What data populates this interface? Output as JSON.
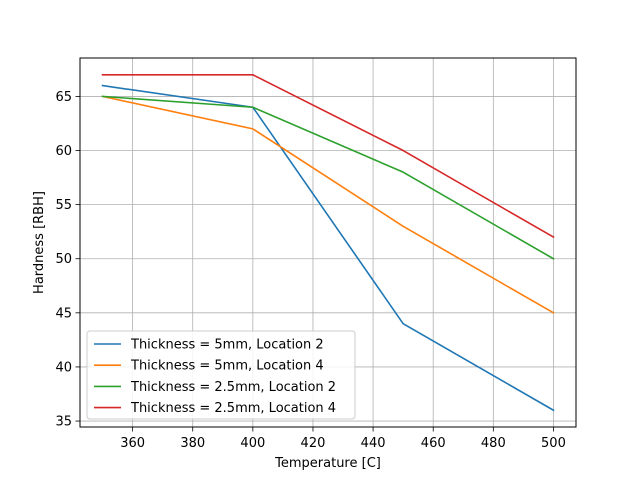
{
  "chart_data": {
    "type": "line",
    "x": [
      350,
      400,
      450,
      500
    ],
    "series": [
      {
        "name": "Thickness = 5mm, Location 2",
        "values": [
          66,
          64,
          44,
          36
        ],
        "color": "#1f77b4"
      },
      {
        "name": "Thickness = 5mm, Location 4",
        "values": [
          65,
          62,
          53,
          45
        ],
        "color": "#ff7f0e"
      },
      {
        "name": "Thickness = 2.5mm, Location 2",
        "values": [
          65,
          64,
          58,
          50
        ],
        "color": "#2ca02c"
      },
      {
        "name": "Thickness = 2.5mm, Location 4",
        "values": [
          67,
          67,
          60,
          52
        ],
        "color": "#d62728"
      }
    ],
    "xlabel": "Temperature [C]",
    "ylabel": "Hardness [RBH]",
    "xlim": [
      342.5,
      507.5
    ],
    "ylim": [
      34.45,
      68.55
    ],
    "xticks": [
      360,
      380,
      400,
      420,
      440,
      460,
      480,
      500
    ],
    "yticks": [
      35,
      40,
      45,
      50,
      55,
      60,
      65
    ],
    "grid": true,
    "legend_position": "lower-left"
  }
}
